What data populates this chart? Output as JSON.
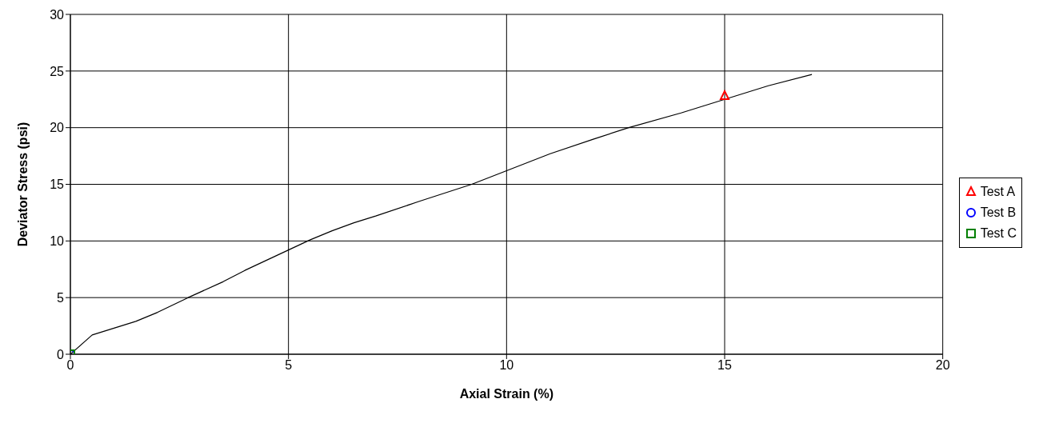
{
  "chart_data": {
    "type": "scatter",
    "xlabel": "Axial Strain (%)",
    "ylabel": "Deviator Stress (psi)",
    "xlim": [
      0,
      20
    ],
    "xticks": [
      0,
      5,
      10,
      15,
      20
    ],
    "ylim": [
      0,
      30
    ],
    "yticks": [
      0,
      5,
      10,
      15,
      20,
      25,
      30
    ],
    "grid": true,
    "legend": "right",
    "series": [
      {
        "type": "line",
        "color": "#000000",
        "marker": "none",
        "x": [
          0,
          0.5,
          1,
          1.5,
          2,
          2.7,
          3.5,
          4,
          5,
          5.5,
          6,
          6.5,
          7,
          8,
          9.2,
          10,
          11,
          12,
          12.8,
          14,
          15,
          16,
          17
        ],
        "values": [
          0,
          1.7,
          2.3,
          2.9,
          3.7,
          5.0,
          6.4,
          7.4,
          9.2,
          10.1,
          10.9,
          11.6,
          12.2,
          13.5,
          15.0,
          16.2,
          17.7,
          19.0,
          20.0,
          21.3,
          22.5,
          23.7,
          24.7
        ]
      },
      {
        "name": "Test A",
        "color": "#ff0000",
        "marker": "triangle",
        "x": [
          15
        ],
        "values": [
          22.8
        ]
      },
      {
        "name": "Test B",
        "color": "#0000ff",
        "marker": "circle",
        "x": [
          0
        ],
        "values": [
          0
        ]
      },
      {
        "name": "Test C",
        "color": "#008000",
        "marker": "square",
        "x": [
          0
        ],
        "values": [
          0
        ]
      }
    ]
  }
}
